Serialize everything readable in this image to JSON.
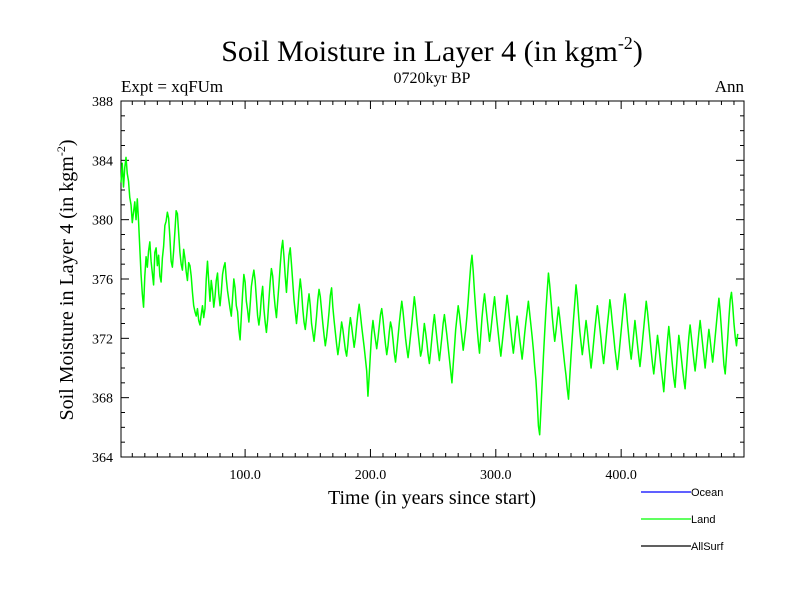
{
  "chart_data": {
    "type": "line",
    "title": "Soil Moisture in Layer 4 (in kgm",
    "title_sup": "-2",
    "title_close": ")",
    "subtitle_left": "Expt = xqFUm",
    "subtitle_center": "0720kyr BP",
    "subtitle_right": "Ann",
    "xlabel": "Time (in years since start)",
    "ylabel": "Soil Moisture in Layer 4 (in kgm",
    "ylabel_sup": "-2",
    "ylabel_close": ")",
    "xlim": [
      1,
      498
    ],
    "ylim": [
      364,
      388
    ],
    "x_ticks": [
      100,
      200,
      300,
      400
    ],
    "x_tick_labels": [
      "100.0",
      "200.0",
      "300.0",
      "400.0"
    ],
    "y_ticks": [
      364,
      368,
      372,
      376,
      380,
      384,
      388
    ],
    "y_tick_labels": [
      "364",
      "368",
      "372",
      "376",
      "380",
      "384",
      "388"
    ],
    "legend": [
      {
        "name": "Ocean",
        "color": "#0000ff"
      },
      {
        "name": "Land",
        "color": "#00ff00"
      },
      {
        "name": "AllSurf",
        "color": "#000000"
      }
    ],
    "series": [
      {
        "name": "Land",
        "color": "#00ff00",
        "x_start": 1,
        "x_step": 1,
        "values": [
          382.5,
          383.8,
          382.2,
          383.5,
          384.2,
          383.1,
          382.6,
          381.5,
          381.0,
          379.8,
          380.5,
          381.2,
          380.0,
          381.4,
          379.9,
          378.1,
          376.3,
          375.0,
          374.1,
          376.2,
          377.5,
          376.8,
          377.9,
          378.5,
          377.2,
          376.4,
          375.6,
          377.8,
          378.1,
          376.9,
          377.6,
          376.2,
          375.8,
          377.4,
          378.2,
          379.6,
          379.9,
          380.5,
          380.1,
          378.8,
          377.2,
          376.8,
          377.9,
          379.2,
          380.6,
          380.4,
          379.1,
          377.8,
          377.0,
          376.6,
          378.0,
          377.4,
          376.5,
          375.9,
          377.1,
          376.9,
          376.2,
          375.1,
          374.2,
          373.8,
          373.5,
          374.0,
          373.2,
          372.9,
          373.6,
          374.2,
          373.4,
          374.0,
          376.0,
          377.2,
          375.8,
          374.5,
          375.9,
          375.2,
          374.1,
          374.8,
          375.9,
          376.4,
          375.0,
          374.2,
          375.1,
          376.3,
          376.8,
          377.1,
          376.0,
          375.2,
          374.6,
          374.0,
          373.5,
          374.7,
          376.0,
          375.4,
          374.2,
          373.8,
          372.6,
          371.9,
          373.5,
          375.0,
          376.3,
          375.8,
          374.5,
          373.9,
          373.1,
          374.2,
          375.5,
          376.1,
          376.6,
          375.9,
          374.7,
          373.5,
          372.9,
          373.6,
          374.8,
          375.5,
          374.0,
          373.1,
          372.4,
          373.3,
          374.6,
          375.8,
          376.7,
          376.2,
          375.0,
          374.1,
          373.4,
          374.5,
          375.6,
          376.9,
          378.0,
          378.6,
          377.5,
          376.2,
          375.1,
          376.4,
          377.6,
          378.1,
          377.0,
          375.8,
          374.6,
          373.8,
          373.0,
          373.9,
          375.1,
          376.0,
          375.2,
          374.0,
          373.1,
          372.6,
          373.4,
          374.3,
          375.0,
          374.2,
          373.0,
          372.4,
          371.8,
          372.6,
          373.5,
          374.6,
          375.3,
          374.8,
          373.9,
          373.0,
          372.2,
          371.5,
          372.1,
          372.9,
          373.8,
          374.9,
          375.4,
          374.1,
          373.2,
          372.4,
          371.6,
          370.9,
          371.5,
          372.3,
          373.1,
          372.6,
          371.9,
          371.2,
          370.8,
          371.6,
          372.7,
          373.4,
          372.8,
          372.1,
          371.4,
          372.0,
          372.9,
          373.7,
          374.3,
          373.6,
          372.8,
          372.1,
          371.4,
          370.6,
          369.8,
          368.1,
          369.5,
          371.0,
          372.4,
          373.2,
          372.5,
          371.9,
          371.3,
          372.0,
          372.8,
          373.6,
          374.0,
          373.3,
          372.4,
          371.6,
          370.9,
          371.5,
          372.4,
          373.1,
          372.7,
          371.9,
          371.0,
          370.4,
          371.2,
          372.1,
          373.0,
          373.8,
          374.5,
          373.8,
          372.9,
          372.0,
          371.3,
          370.7,
          371.4,
          372.2,
          373.0,
          373.9,
          374.8,
          374.1,
          373.2,
          372.4,
          371.6,
          370.8,
          371.2,
          372.1,
          373.0,
          372.4,
          371.7,
          370.9,
          370.3,
          371.1,
          372.0,
          372.9,
          373.6,
          372.8,
          372.0,
          371.2,
          370.5,
          371.3,
          372.1,
          373.0,
          373.6,
          372.9,
          372.2,
          371.4,
          370.6,
          369.8,
          369.0,
          370.2,
          371.4,
          372.6,
          373.4,
          374.2,
          373.6,
          372.8,
          372.0,
          371.2,
          371.9,
          372.6,
          373.5,
          374.6,
          375.8,
          376.9,
          377.6,
          376.5,
          375.1,
          373.9,
          372.8,
          371.8,
          371.0,
          372.2,
          373.4,
          374.3,
          375.0,
          374.2,
          373.4,
          372.6,
          371.8,
          372.5,
          373.3,
          374.1,
          374.8,
          373.9,
          373.1,
          372.3,
          371.5,
          370.8,
          371.6,
          372.4,
          373.2,
          374.0,
          374.9,
          374.2,
          373.3,
          372.5,
          371.7,
          371.0,
          371.8,
          372.7,
          373.5,
          372.8,
          372.0,
          371.3,
          370.6,
          371.4,
          372.3,
          373.1,
          373.8,
          374.5,
          373.7,
          372.9,
          372.1,
          371.2,
          370.1,
          369.2,
          367.8,
          366.1,
          365.5,
          367.2,
          369.0,
          370.8,
          372.4,
          373.9,
          375.2,
          376.4,
          375.6,
          374.6,
          373.5,
          372.6,
          371.8,
          372.5,
          373.3,
          374.1,
          373.4,
          372.6,
          371.8,
          371.0,
          370.2,
          369.5,
          368.6,
          367.9,
          369.4,
          370.8,
          372.1,
          373.3,
          374.4,
          375.6,
          374.8,
          373.6,
          372.5,
          371.7,
          370.9,
          371.6,
          372.4,
          373.2,
          372.5,
          371.6,
          370.8,
          370.0,
          370.8,
          371.7,
          372.6,
          373.4,
          374.2,
          373.5,
          372.7,
          371.9,
          371.0,
          370.3,
          371.1,
          372.0,
          372.9,
          373.7,
          374.6,
          373.9,
          373.0,
          372.2,
          371.3,
          370.6,
          369.9,
          370.7,
          371.6,
          372.5,
          373.4,
          374.3,
          375.0,
          374.1,
          373.1,
          372.2,
          371.3,
          370.6,
          371.4,
          372.3,
          373.2,
          372.4,
          371.6,
          370.8,
          370.1,
          370.9,
          371.8,
          372.7,
          373.6,
          374.5,
          373.8,
          372.9,
          372.0,
          371.1,
          370.3,
          369.6,
          370.4,
          371.3,
          372.2,
          371.5,
          370.7,
          369.9,
          369.2,
          368.4,
          369.6,
          370.8,
          371.9,
          372.8,
          371.9,
          371.0,
          370.1,
          369.3,
          368.7,
          369.9,
          371.1,
          372.2,
          371.5,
          370.7,
          369.9,
          369.2,
          368.6,
          369.8,
          371.0,
          372.1,
          372.9,
          372.1,
          371.3,
          370.5,
          369.8,
          370.6,
          371.5,
          372.4,
          373.2,
          372.4,
          371.6,
          370.8,
          370.0,
          370.9,
          371.8,
          372.6,
          371.9,
          371.1,
          370.4,
          371.2,
          372.1,
          373.0,
          373.9,
          374.7,
          373.8,
          372.6,
          371.4,
          370.2,
          369.6,
          370.8,
          372.0,
          373.4,
          374.6,
          375.1,
          374.2,
          373.0,
          372.1,
          371.5,
          372.3
        ]
      }
    ]
  }
}
